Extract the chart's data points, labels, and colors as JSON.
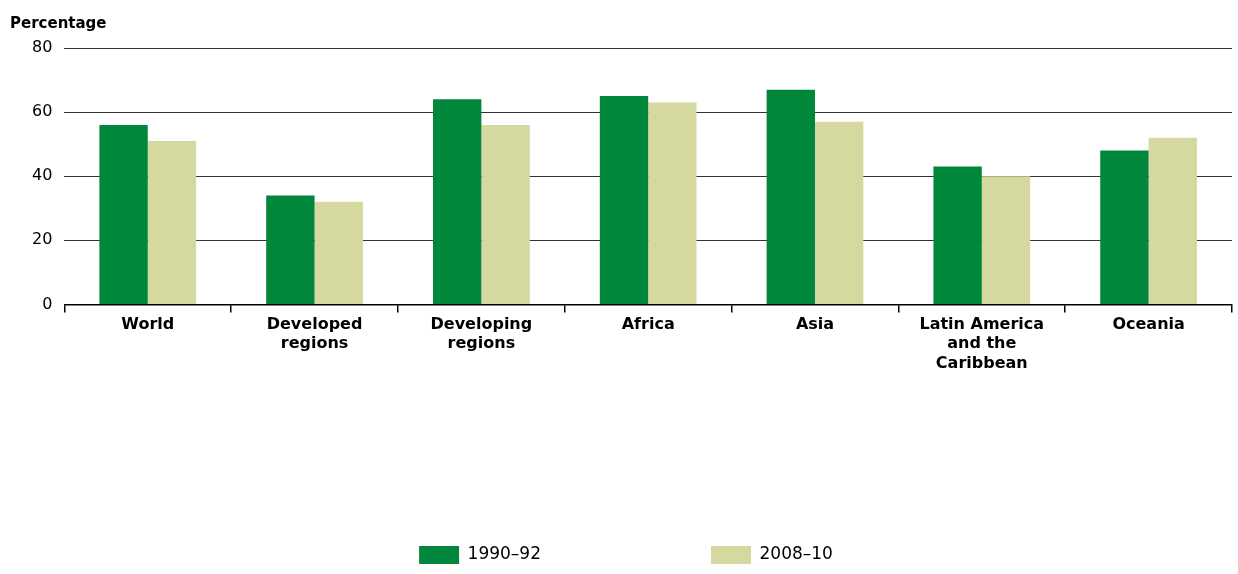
{
  "chart_data": {
    "type": "bar",
    "ylabel": "Percentage",
    "categories": [
      "World",
      "Developed regions",
      "Developing regions",
      "Africa",
      "Asia",
      "Latin America and the Caribbean",
      "Oceania"
    ],
    "series": [
      {
        "name": "1990–92",
        "color": "#00873c",
        "values": [
          56,
          34,
          64,
          65,
          67,
          43,
          48
        ]
      },
      {
        "name": "2008–10",
        "color": "#d5d9a0",
        "values": [
          51,
          32,
          56,
          63,
          57,
          40,
          52
        ]
      }
    ],
    "ylim": [
      0,
      80
    ],
    "yticks": [
      0,
      20,
      40,
      60,
      80
    ],
    "grid": "y",
    "legend": "bottom"
  }
}
